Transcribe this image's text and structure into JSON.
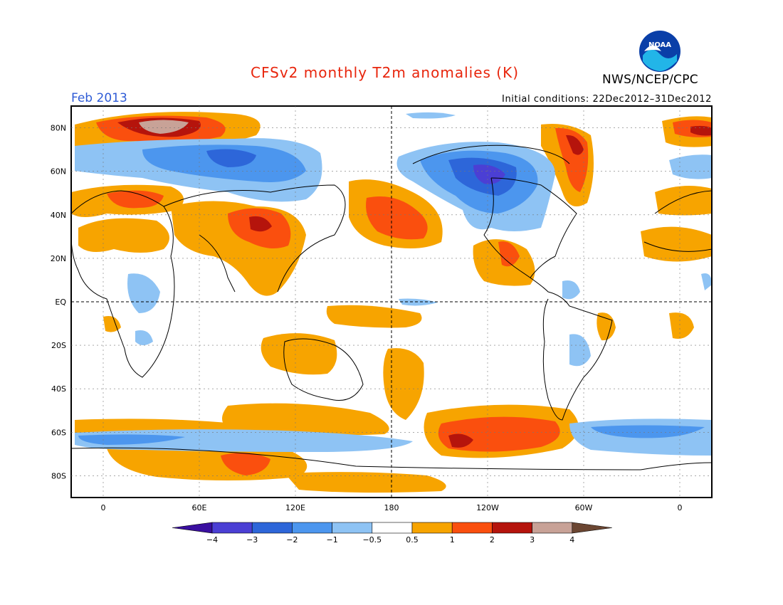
{
  "title": "CFSv2 monthly T2m anomalies (K)",
  "organization": "NWS/NCEP/CPC",
  "logo_text": "NOAA",
  "valid_month": "Feb 2013",
  "initial_conditions": "Initial conditions: 22Dec2012–31Dec2012",
  "colors": {
    "title": "#e8250c",
    "month": "#2e5bd6",
    "logo_blue": "#0a3fa8",
    "logo_cyan": "#22b5e8"
  },
  "map": {
    "projection": "cylindrical equidistant",
    "lon_labels": [
      "0",
      "60E",
      "120E",
      "180",
      "120W",
      "60W",
      "0"
    ],
    "lat_labels": [
      "80N",
      "60N",
      "40N",
      "20N",
      "EQ",
      "20S",
      "40S",
      "60S",
      "80S"
    ],
    "grid": "dotted",
    "reference_lines": [
      "EQ",
      "180"
    ]
  },
  "colorbar": {
    "tick_labels": [
      "−4",
      "−3",
      "−2",
      "−1",
      "−0.5",
      "0.5",
      "1",
      "2",
      "3",
      "4"
    ],
    "bins": [
      {
        "range": "< -4",
        "color": "#3a0fa0"
      },
      {
        "range": "-4 to -3",
        "color": "#4b3fd4"
      },
      {
        "range": "-3 to -2",
        "color": "#2d66d9"
      },
      {
        "range": "-2 to -1",
        "color": "#4c96ee"
      },
      {
        "range": "-1 to -0.5",
        "color": "#8ec3f4"
      },
      {
        "range": "-0.5 to 0.5",
        "color": "#ffffff"
      },
      {
        "range": "0.5 to 1",
        "color": "#f7a400"
      },
      {
        "range": "1 to 2",
        "color": "#fa4f0e"
      },
      {
        "range": "2 to 3",
        "color": "#b5140c"
      },
      {
        "range": "3 to 4",
        "color": "#c8a297"
      },
      {
        "range": "> 4",
        "color": "#6b4632"
      }
    ]
  }
}
